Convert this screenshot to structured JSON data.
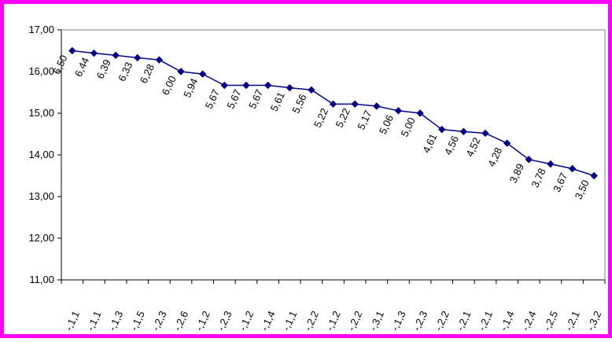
{
  "chart_data": {
    "type": "line",
    "title": "",
    "xlabel": "",
    "ylabel": "",
    "ylim": [
      11,
      17
    ],
    "yticks": [
      "11,00",
      "12,00",
      "13,00",
      "14,00",
      "15,00",
      "16,00",
      "17,00"
    ],
    "grid": false,
    "legend": "none",
    "categories": [
      "-,1,1",
      "-,1,1",
      "-,1,3",
      "-,1,5",
      "-,2,3",
      "-,2,6",
      "-,1,2",
      "-,2,3",
      "-,1,2",
      "-,1,4",
      "-,1,1",
      "-,2,2",
      "-,1,2",
      "-,2,2",
      "-,3,1",
      "-,1,3",
      "-,2,3",
      "-,2,2",
      "-,2,1",
      "-,2,1",
      "-,1,4",
      "-,2,4",
      "-,2,5",
      "-,2,1",
      "-,3,2"
    ],
    "data_labels": [
      "6,50",
      "6,44",
      "6,39",
      "6,33",
      "6,28",
      "6,00",
      "5,94",
      "5,67",
      "5,67",
      "5,67",
      "5,61",
      "5,56",
      "5,22",
      "5,22",
      "5,17",
      "5,06",
      "5,00",
      "4,61",
      "4,56",
      "4,52",
      "4,28",
      "3,89",
      "3,78",
      "3,67",
      "3,50"
    ],
    "series": [
      {
        "values": [
          16.5,
          16.44,
          16.39,
          16.33,
          16.28,
          16.0,
          15.94,
          15.67,
          15.67,
          15.67,
          15.61,
          15.56,
          15.22,
          15.22,
          15.17,
          15.06,
          15.0,
          14.61,
          14.56,
          14.52,
          14.28,
          13.89,
          13.78,
          13.67,
          13.5
        ]
      }
    ],
    "colors": {
      "line": "#000080",
      "marker": "#000080",
      "frame": "#ff00ff",
      "axis": "#000000"
    }
  }
}
